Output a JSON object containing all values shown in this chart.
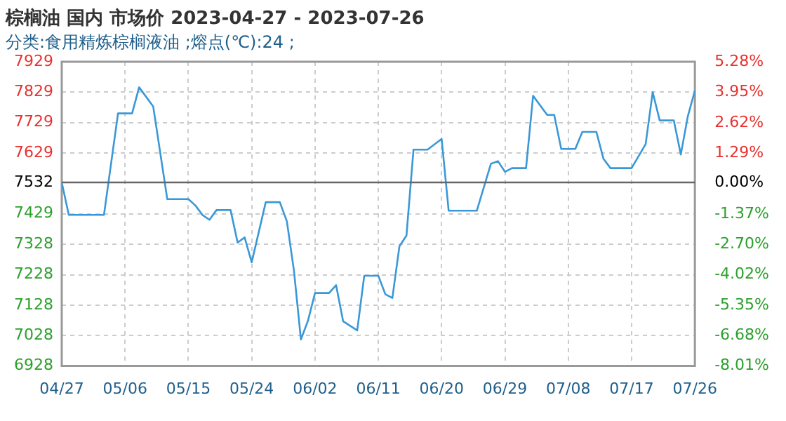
{
  "chart_data": {
    "type": "line",
    "title": "棕榈油 国内 市场价 2023-04-27 - 2023-07-26",
    "subtitle": "分类:食用精炼棕榈液油 ;熔点(℃):24 ;",
    "x": [
      "2023-04-27",
      "2023-04-28",
      "2023-05-03",
      "2023-05-05",
      "2023-05-07",
      "2023-05-08",
      "2023-05-10",
      "2023-05-12",
      "2023-05-15",
      "2023-05-16",
      "2023-05-17",
      "2023-05-18",
      "2023-05-19",
      "2023-05-21",
      "2023-05-22",
      "2023-05-23",
      "2023-05-24",
      "2023-05-26",
      "2023-05-28",
      "2023-05-29",
      "2023-05-30",
      "2023-05-31",
      "2023-06-01",
      "2023-06-02",
      "2023-06-04",
      "2023-06-05",
      "2023-06-06",
      "2023-06-08",
      "2023-06-09",
      "2023-06-11",
      "2023-06-12",
      "2023-06-13",
      "2023-06-14",
      "2023-06-15",
      "2023-06-16",
      "2023-06-18",
      "2023-06-20",
      "2023-06-21",
      "2023-06-25",
      "2023-06-27",
      "2023-06-28",
      "2023-06-29",
      "2023-06-30",
      "2023-07-02",
      "2023-07-03",
      "2023-07-05",
      "2023-07-06",
      "2023-07-07",
      "2023-07-09",
      "2023-07-10",
      "2023-07-12",
      "2023-07-13",
      "2023-07-14",
      "2023-07-17",
      "2023-07-19",
      "2023-07-20",
      "2023-07-21",
      "2023-07-23",
      "2023-07-24",
      "2023-07-25",
      "2023-07-26"
    ],
    "series": [
      {
        "color": "#3a98d8",
        "values": [
          7532,
          7425,
          7425,
          7759,
          7759,
          7845,
          7782,
          7477,
          7477,
          7456,
          7425,
          7409,
          7441,
          7441,
          7334,
          7351,
          7269,
          7467,
          7467,
          7404,
          7243,
          7015,
          7077,
          7168,
          7168,
          7194,
          7075,
          7045,
          7225,
          7225,
          7164,
          7152,
          7322,
          7357,
          7640,
          7640,
          7675,
          7439,
          7439,
          7593,
          7602,
          7567,
          7579,
          7579,
          7817,
          7754,
          7754,
          7642,
          7642,
          7698,
          7698,
          7610,
          7579,
          7579,
          7658,
          7829,
          7736,
          7736,
          7624,
          7750,
          7834
        ]
      }
    ],
    "xlim": [
      "2023-04-27",
      "2023-07-26"
    ],
    "xticks": [
      {
        "value": "2023-04-27",
        "label": "04/27"
      },
      {
        "value": "2023-05-06",
        "label": "05/06"
      },
      {
        "value": "2023-05-15",
        "label": "05/15"
      },
      {
        "value": "2023-05-24",
        "label": "05/24"
      },
      {
        "value": "2023-06-02",
        "label": "06/02"
      },
      {
        "value": "2023-06-11",
        "label": "06/11"
      },
      {
        "value": "2023-06-20",
        "label": "06/20"
      },
      {
        "value": "2023-06-29",
        "label": "06/29"
      },
      {
        "value": "2023-07-08",
        "label": "07/08"
      },
      {
        "value": "2023-07-17",
        "label": "07/17"
      },
      {
        "value": "2023-07-26",
        "label": "07/26"
      }
    ],
    "ylim": [
      6928,
      7929
    ],
    "yticks": [
      6928,
      7028,
      7128,
      7228,
      7328,
      7429,
      7532,
      7629,
      7729,
      7829,
      7929
    ],
    "y2lim": [
      -8.01,
      5.28
    ],
    "y2ticks": [
      {
        "value": -8.01,
        "label": "-8.01%"
      },
      {
        "value": -6.68,
        "label": "-6.68%"
      },
      {
        "value": -5.35,
        "label": "-5.35%"
      },
      {
        "value": -4.02,
        "label": "-4.02%"
      },
      {
        "value": -2.7,
        "label": "-2.70%"
      },
      {
        "value": -1.37,
        "label": "-1.37%"
      },
      {
        "value": 0,
        "label": "0.00%"
      },
      {
        "value": 1.29,
        "label": "1.29%"
      },
      {
        "value": 2.62,
        "label": "2.62%"
      },
      {
        "value": 3.95,
        "label": "3.95%"
      },
      {
        "value": 5.28,
        "label": "5.28%"
      }
    ],
    "ref_lines": [
      {
        "axis": "y",
        "value": 7532,
        "color": "#666666"
      }
    ],
    "grid": true,
    "marker": "none",
    "line_style": "solid",
    "legend": false
  }
}
